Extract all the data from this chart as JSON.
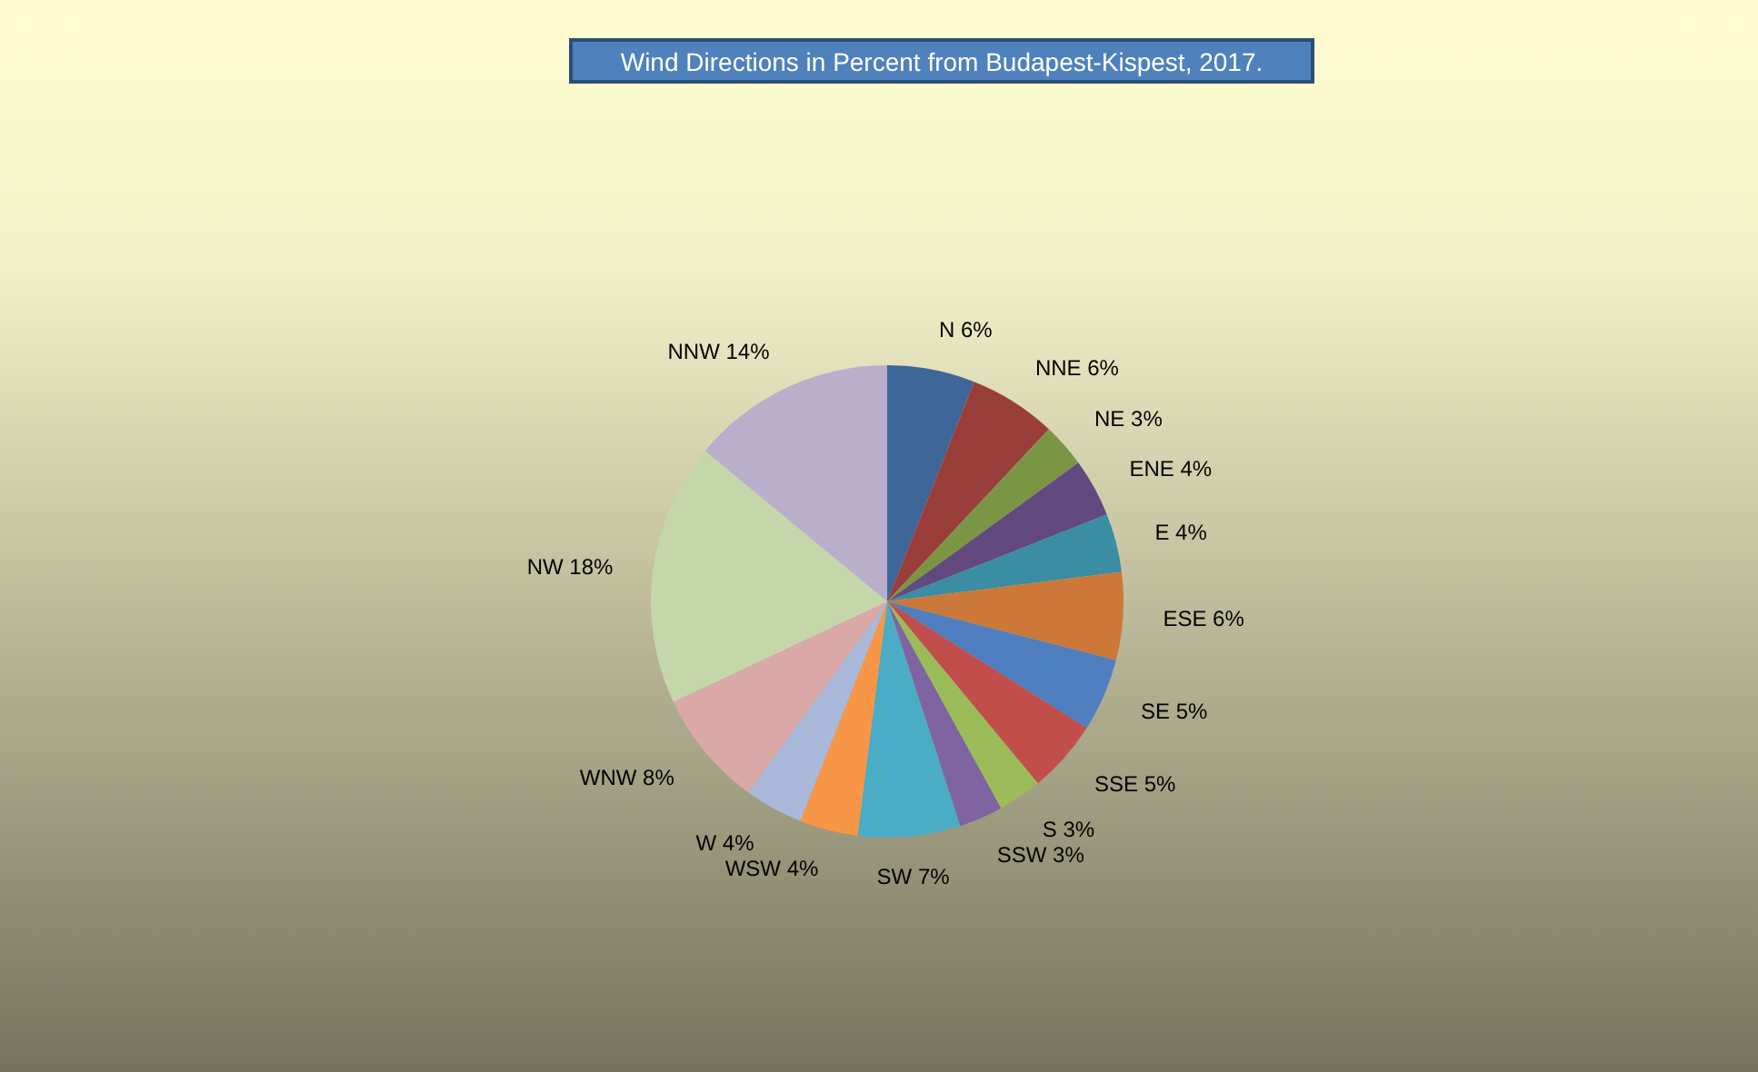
{
  "chart_data": {
    "type": "pie",
    "title": "Wind Directions in Percent from Budapest-Kispest, 2017.",
    "categories": [
      "N",
      "NNE",
      "NE",
      "ENE",
      "E",
      "ESE",
      "SE",
      "SSE",
      "S",
      "SSW",
      "SW",
      "WSW",
      "W",
      "WNW",
      "NW",
      "NNW"
    ],
    "values": [
      6,
      6,
      3,
      4,
      4,
      6,
      5,
      5,
      3,
      3,
      7,
      4,
      4,
      8,
      18,
      14
    ],
    "colors": [
      "#3e6699",
      "#9a3e3c",
      "#7a9645",
      "#624a7f",
      "#3a8da3",
      "#cc7838",
      "#4f7fc0",
      "#c24e4c",
      "#9bbb59",
      "#8064a2",
      "#4bacc6",
      "#f79646",
      "#aab9d9",
      "#d9a8a7",
      "#c5d6aa",
      "#baafcb"
    ],
    "value_labels": [
      "6%",
      "6%",
      "3%",
      "4%",
      "4%",
      "6%",
      "5%",
      "5%",
      "3%",
      "3%",
      "7%",
      "4%",
      "4%",
      "8%",
      "18%",
      "14%"
    ],
    "legend": false
  }
}
